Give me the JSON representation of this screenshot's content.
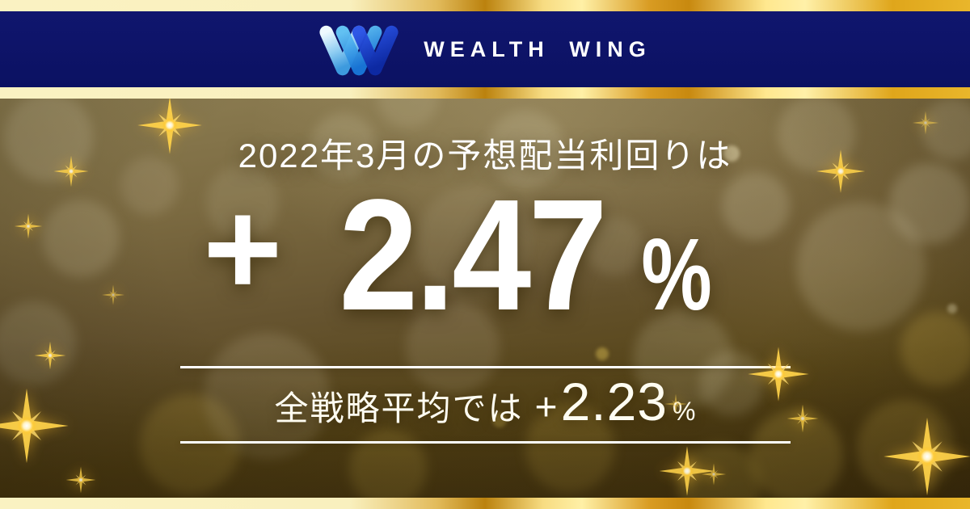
{
  "header": {
    "brand": "WEALTH WING"
  },
  "main": {
    "headline": "2022年3月の予想配当利回りは",
    "value_sign": "+",
    "value": "2.47",
    "value_unit": "%"
  },
  "sub": {
    "label": "全戦略平均では",
    "sign": "+",
    "value": "2.23",
    "unit": "%"
  },
  "colors": {
    "header_navy": "#0b1162",
    "gold_pale": "#faf2c2",
    "gold_deep": "#bb820e",
    "background_olive": "#665430",
    "sparkle_gold": "#ffd24a",
    "text_white": "#ffffff",
    "logo_blue_light": "#d9f1ff",
    "logo_blue_mid": "#2d9cec",
    "logo_blue_dark": "#102fb0"
  }
}
